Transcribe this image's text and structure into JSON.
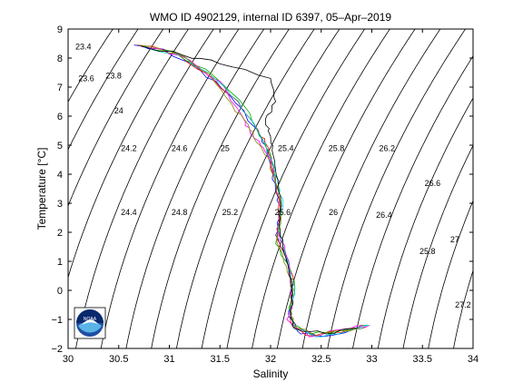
{
  "chart_data": {
    "type": "scatter",
    "title": "WMO ID 4902129, internal ID 6397, 05–Apr–2019",
    "xlabel": "Salinity",
    "ylabel": "Temperature [°C]",
    "xlim": [
      30,
      34
    ],
    "ylim": [
      -2,
      9
    ],
    "xticks": [
      "30",
      "30.5",
      "31",
      "31.5",
      "32",
      "32.5",
      "33",
      "33.5",
      "34"
    ],
    "yticks": [
      "−2",
      "−1",
      "0",
      "1",
      "2",
      "3",
      "4",
      "5",
      "6",
      "7",
      "8",
      "9"
    ],
    "density_contours": [
      "23.4",
      "23.6",
      "23.8",
      "24",
      "24.2",
      "24.4",
      "24.6",
      "24.8",
      "25",
      "25.2",
      "25.4",
      "25.6",
      "25.8",
      "26",
      "26.2",
      "26.4",
      "26.6",
      "26.8",
      "27",
      "27.2"
    ],
    "density_labels": [
      {
        "text": "23.4",
        "s": 30.15,
        "t": 8.3
      },
      {
        "text": "23.6",
        "s": 30.18,
        "t": 7.2
      },
      {
        "text": "23.8",
        "s": 30.45,
        "t": 7.3
      },
      {
        "text": "24",
        "s": 30.5,
        "t": 6.1
      },
      {
        "text": "24.2",
        "s": 30.6,
        "t": 4.8
      },
      {
        "text": "24.6",
        "s": 31.1,
        "t": 4.8
      },
      {
        "text": "25",
        "s": 31.55,
        "t": 4.8
      },
      {
        "text": "25.4",
        "s": 32.15,
        "t": 4.8
      },
      {
        "text": "25.8",
        "s": 32.65,
        "t": 4.8
      },
      {
        "text": "26.2",
        "s": 33.15,
        "t": 4.8
      },
      {
        "text": "26.6",
        "s": 33.6,
        "t": 3.6
      },
      {
        "text": "24.4",
        "s": 30.6,
        "t": 2.6
      },
      {
        "text": "24.8",
        "s": 31.1,
        "t": 2.6
      },
      {
        "text": "25.2",
        "s": 31.6,
        "t": 2.6
      },
      {
        "text": "25.6",
        "s": 32.12,
        "t": 2.6
      },
      {
        "text": "26",
        "s": 32.62,
        "t": 2.6
      },
      {
        "text": "26.4",
        "s": 33.12,
        "t": 2.5
      },
      {
        "text": "25.8",
        "s": 33.55,
        "t": 1.25
      },
      {
        "text": "27",
        "s": 33.82,
        "t": 1.65
      },
      {
        "text": "27.2",
        "s": 33.9,
        "t": -0.6
      }
    ],
    "series": [
      {
        "color": "#0000ff",
        "points": [
          [
            30.65,
            8.45
          ],
          [
            30.95,
            8.3
          ],
          [
            31.3,
            7.6
          ],
          [
            31.6,
            6.7
          ],
          [
            31.85,
            5.6
          ],
          [
            31.95,
            5.0
          ],
          [
            32.0,
            4.3
          ],
          [
            32.05,
            3.4
          ],
          [
            32.1,
            2.7
          ],
          [
            32.05,
            1.9
          ],
          [
            32.15,
            1.2
          ],
          [
            32.2,
            0.5
          ],
          [
            32.22,
            -0.2
          ],
          [
            32.18,
            -0.9
          ],
          [
            32.3,
            -1.5
          ],
          [
            32.6,
            -1.55
          ],
          [
            32.9,
            -1.25
          ]
        ]
      },
      {
        "color": "#ff0000",
        "points": [
          [
            30.68,
            8.45
          ],
          [
            31.0,
            8.25
          ],
          [
            31.35,
            7.5
          ],
          [
            31.68,
            6.5
          ],
          [
            31.88,
            5.5
          ],
          [
            31.98,
            4.9
          ],
          [
            32.02,
            4.1
          ],
          [
            32.08,
            3.2
          ],
          [
            32.08,
            2.5
          ],
          [
            32.06,
            1.8
          ],
          [
            32.16,
            1.1
          ],
          [
            32.23,
            0.3
          ],
          [
            32.2,
            -0.4
          ],
          [
            32.2,
            -1.1
          ],
          [
            32.35,
            -1.55
          ],
          [
            32.7,
            -1.45
          ],
          [
            32.95,
            -1.25
          ]
        ]
      },
      {
        "color": "#00aa00",
        "points": [
          [
            30.7,
            8.45
          ],
          [
            31.05,
            8.2
          ],
          [
            31.45,
            7.35
          ],
          [
            31.75,
            6.3
          ],
          [
            31.9,
            5.3
          ],
          [
            32.0,
            4.7
          ],
          [
            32.05,
            3.9
          ],
          [
            32.1,
            3.0
          ],
          [
            32.1,
            2.3
          ],
          [
            32.05,
            1.6
          ],
          [
            32.17,
            0.9
          ],
          [
            32.24,
            0.1
          ],
          [
            32.18,
            -0.6
          ],
          [
            32.22,
            -1.2
          ],
          [
            32.4,
            -1.5
          ],
          [
            32.75,
            -1.35
          ],
          [
            32.95,
            -1.2
          ]
        ]
      },
      {
        "color": "#ff00ff",
        "points": [
          [
            30.72,
            8.4
          ],
          [
            31.1,
            8.1
          ],
          [
            31.5,
            7.2
          ],
          [
            31.72,
            6.0
          ],
          [
            31.8,
            5.4
          ],
          [
            31.9,
            5.0
          ],
          [
            32.0,
            4.5
          ],
          [
            32.06,
            3.6
          ],
          [
            32.1,
            2.8
          ],
          [
            32.08,
            2.0
          ],
          [
            32.18,
            1.0
          ],
          [
            32.2,
            0.2
          ],
          [
            32.21,
            -0.5
          ],
          [
            32.16,
            -1.0
          ],
          [
            32.38,
            -1.6
          ],
          [
            32.8,
            -1.3
          ],
          [
            32.98,
            -1.2
          ]
        ]
      },
      {
        "color": "#00cccc",
        "points": [
          [
            30.75,
            8.4
          ],
          [
            31.15,
            8.05
          ],
          [
            31.55,
            7.0
          ],
          [
            31.8,
            5.9
          ],
          [
            31.92,
            5.2
          ],
          [
            32.02,
            4.4
          ],
          [
            32.07,
            3.7
          ],
          [
            32.12,
            2.9
          ],
          [
            32.07,
            2.2
          ],
          [
            32.14,
            1.4
          ],
          [
            32.2,
            0.6
          ],
          [
            32.24,
            -0.1
          ],
          [
            32.19,
            -0.8
          ],
          [
            32.25,
            -1.35
          ],
          [
            32.5,
            -1.6
          ],
          [
            32.85,
            -1.3
          ],
          [
            32.97,
            -1.22
          ]
        ]
      },
      {
        "color": "#888800",
        "points": [
          [
            30.7,
            8.44
          ],
          [
            31.08,
            8.15
          ],
          [
            31.4,
            7.45
          ],
          [
            31.62,
            6.4
          ],
          [
            31.78,
            5.7
          ],
          [
            31.86,
            5.1
          ],
          [
            31.97,
            4.6
          ],
          [
            32.04,
            3.8
          ],
          [
            32.09,
            3.0
          ],
          [
            32.1,
            2.4
          ],
          [
            32.06,
            1.7
          ],
          [
            32.16,
            0.8
          ],
          [
            32.22,
            0.0
          ],
          [
            32.2,
            -0.7
          ],
          [
            32.24,
            -1.25
          ],
          [
            32.45,
            -1.55
          ],
          [
            32.88,
            -1.28
          ]
        ]
      },
      {
        "color": "#000000",
        "points": [
          [
            30.72,
            8.42
          ],
          [
            31.12,
            8.12
          ],
          [
            31.5,
            7.8
          ],
          [
            32.0,
            7.3
          ],
          [
            32.05,
            6.5
          ],
          [
            31.95,
            5.9
          ],
          [
            32.0,
            5.3
          ],
          [
            32.03,
            4.6
          ],
          [
            32.06,
            3.9
          ],
          [
            32.1,
            3.1
          ],
          [
            32.08,
            2.3
          ],
          [
            32.12,
            1.5
          ],
          [
            32.18,
            0.7
          ],
          [
            32.22,
            -0.1
          ],
          [
            32.2,
            -0.8
          ],
          [
            32.23,
            -1.3
          ],
          [
            32.55,
            -1.5
          ],
          [
            32.85,
            -1.3
          ]
        ]
      }
    ]
  },
  "logo": {
    "text": "NOAA"
  }
}
